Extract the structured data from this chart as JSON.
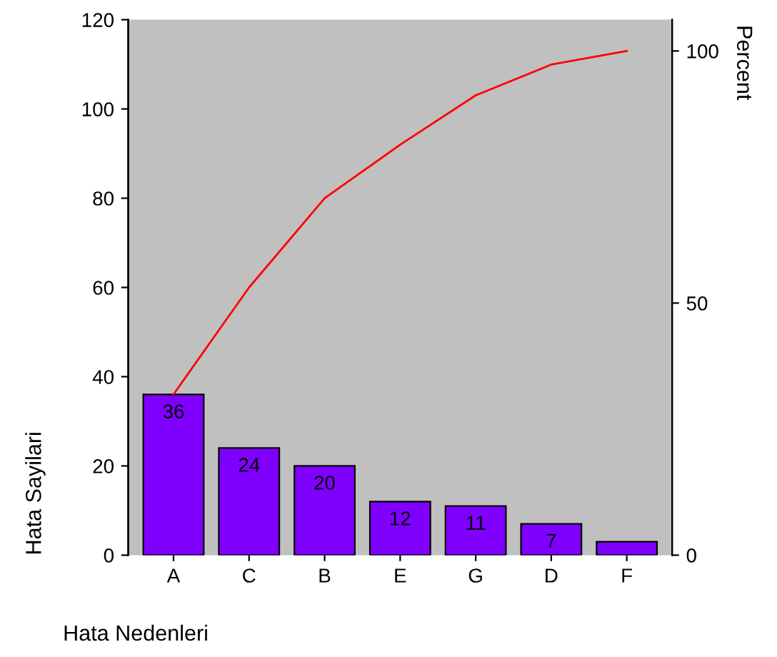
{
  "chart_data": {
    "type": "bar",
    "xlabel": "Hata Nedenleri",
    "ylabel": "Hata Sayilari",
    "y2label": "Percent",
    "categories": [
      "A",
      "C",
      "B",
      "E",
      "G",
      "D",
      "F"
    ],
    "series": [
      {
        "type": "bar",
        "color": "#8000ff",
        "values": [
          36,
          24,
          20,
          12,
          11,
          7,
          3
        ],
        "value_labels": [
          "36",
          "24",
          "20",
          "12",
          "11",
          "7",
          null
        ]
      },
      {
        "type": "line",
        "axis": "y2",
        "color": "#ff0000",
        "values": [
          31.9,
          53.1,
          70.8,
          81.4,
          91.2,
          97.3,
          100
        ]
      }
    ],
    "ylim": [
      0,
      120
    ],
    "yticks": [
      0,
      20,
      40,
      60,
      80,
      100,
      120
    ],
    "y2lim": [
      0,
      106.2
    ],
    "y2ticks": [
      0,
      50,
      100
    ],
    "grid": false,
    "legend": false
  }
}
